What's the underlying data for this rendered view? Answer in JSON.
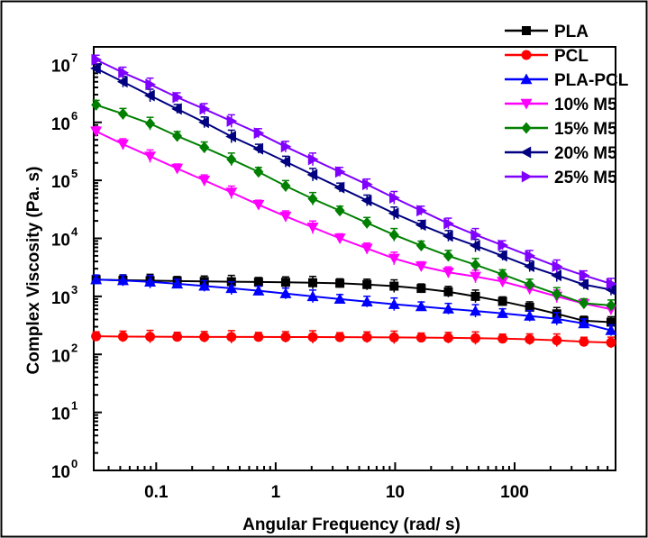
{
  "chart_data": {
    "type": "line",
    "title": "",
    "xlabel": "Angular Frequency (rad/ s)",
    "ylabel": "Complex Viscosity (Pa. s)",
    "xscale": "log",
    "yscale": "log",
    "xlim": [
      0.03,
      700
    ],
    "ylim": [
      1,
      20000000
    ],
    "x_ticks": [
      {
        "value": 0.1,
        "label": "0.1"
      },
      {
        "value": 1,
        "label": "1"
      },
      {
        "value": 10,
        "label": "10"
      },
      {
        "value": 100,
        "label": "100"
      }
    ],
    "y_ticks": [
      {
        "value": 1,
        "base": "10",
        "exp": "0"
      },
      {
        "value": 10,
        "base": "10",
        "exp": "1"
      },
      {
        "value": 100,
        "base": "10",
        "exp": "2"
      },
      {
        "value": 1000,
        "base": "10",
        "exp": "3"
      },
      {
        "value": 10000,
        "base": "10",
        "exp": "4"
      },
      {
        "value": 100000,
        "base": "10",
        "exp": "5"
      },
      {
        "value": 1000000,
        "base": "10",
        "exp": "6"
      },
      {
        "value": 10000000,
        "base": "10",
        "exp": "7"
      }
    ],
    "grid": false,
    "legend_position": "top-right",
    "x": [
      0.0314,
      0.0527,
      0.0889,
      0.1499,
      0.2527,
      0.4262,
      0.7188,
      1.212,
      2.044,
      3.447,
      5.813,
      9.803,
      16.53,
      27.88,
      47.02,
      79.3,
      133.7,
      225.5,
      380.3,
      641.4
    ],
    "series": [
      {
        "name": "PLA",
        "color": "#000000",
        "marker": "square",
        "values": [
          1950,
          1900,
          1870,
          1840,
          1810,
          1790,
          1770,
          1750,
          1720,
          1680,
          1600,
          1500,
          1370,
          1200,
          1000,
          820,
          650,
          500,
          380,
          360
        ]
      },
      {
        "name": "PCL",
        "color": "#ff0000",
        "marker": "circle",
        "values": [
          205,
          203,
          202,
          201,
          200,
          200,
          200,
          199,
          199,
          198,
          197,
          196,
          195,
          193,
          190,
          187,
          182,
          175,
          165,
          160
        ]
      },
      {
        "name": "PLA-PCL",
        "color": "#0000ff",
        "marker": "triangle-up",
        "values": [
          1950,
          1880,
          1780,
          1650,
          1510,
          1380,
          1250,
          1120,
          1000,
          900,
          810,
          730,
          670,
          610,
          560,
          510,
          460,
          410,
          340,
          260
        ]
      },
      {
        "name": "10% M5",
        "color": "#ff00ff",
        "marker": "triangle-down",
        "values": [
          700000,
          420000,
          260000,
          160000,
          100000,
          62000,
          38000,
          24000,
          15500,
          10000,
          6700,
          4500,
          3300,
          2600,
          2200,
          1800,
          1350,
          1000,
          750,
          600
        ]
      },
      {
        "name": "15% M5",
        "color": "#008000",
        "marker": "diamond",
        "values": [
          2000000,
          1400000,
          950000,
          580000,
          370000,
          230000,
          140000,
          80000,
          48000,
          30000,
          18500,
          11500,
          7500,
          5000,
          3500,
          2400,
          1600,
          1100,
          760,
          700
        ]
      },
      {
        "name": "20% M5",
        "color": "#000080",
        "marker": "triangle-left",
        "values": [
          8500000,
          5000000,
          2900000,
          1700000,
          1000000,
          570000,
          350000,
          210000,
          125000,
          75000,
          45000,
          27000,
          17000,
          11000,
          7500,
          5000,
          3300,
          2300,
          1600,
          1300
        ]
      },
      {
        "name": "25% M5",
        "color": "#8000ff",
        "marker": "triangle-right",
        "values": [
          12000000,
          7200000,
          4500000,
          2700000,
          1700000,
          1050000,
          650000,
          380000,
          230000,
          140000,
          85000,
          50000,
          30000,
          18000,
          11500,
          7600,
          5000,
          3300,
          2300,
          1650
        ]
      }
    ]
  }
}
